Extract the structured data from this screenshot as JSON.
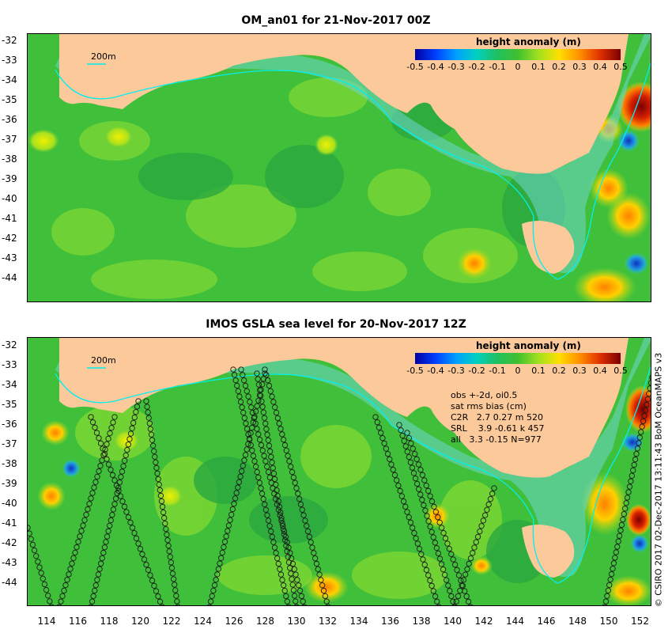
{
  "top_panel": {
    "title": "OM_an01 for 21-Nov-2017 00Z",
    "legend_title": "height anomaly (m)",
    "contour_label": "200m"
  },
  "bottom_panel": {
    "title": "IMOS GSLA sea level  for 20-Nov-2017 12Z",
    "legend_title": "height anomaly (m)",
    "contour_label": "200m",
    "stats": [
      "obs +-2d, oi0.5",
      "sat rms bias (cm)",
      "C2R   2.7 0.27 m 520",
      "SRL    3.9 -0.61 k 457",
      "all   3.3 -0.15 N=977"
    ]
  },
  "legend_ticks": [
    "-0.5",
    "-0.4",
    "-0.3",
    "-0.2",
    "-0.1",
    "0",
    "0.1",
    "0.2",
    "0.3",
    "0.4",
    "0.5"
  ],
  "top_y_ticks": [
    "-32",
    "-33",
    "-34",
    "-35",
    "-36",
    "-37",
    "-38",
    "-39",
    "-40",
    "-41",
    "-42",
    "-43",
    "-44"
  ],
  "bottom_y_ticks": [
    "-32",
    "-33",
    "-34",
    "-35",
    "-36",
    "-37",
    "-38",
    "-39",
    "-40",
    "-41",
    "-42",
    "-43",
    "-44"
  ],
  "x_ticks": [
    "114",
    "116",
    "118",
    "120",
    "122",
    "124",
    "126",
    "128",
    "130",
    "132",
    "134",
    "136",
    "138",
    "140",
    "142",
    "144",
    "146",
    "148",
    "150",
    "152"
  ],
  "copyright": "© CSIRO 2017  02-Dec-2017 13:11:43 BoM OceanMAPS v3",
  "colors": {
    "land": "#fbc99a",
    "ocean_base": "#3fbf3a",
    "shelf": "#6fd7d0",
    "scale_low": "#0000a0",
    "scale_high": "#7a0000"
  }
}
